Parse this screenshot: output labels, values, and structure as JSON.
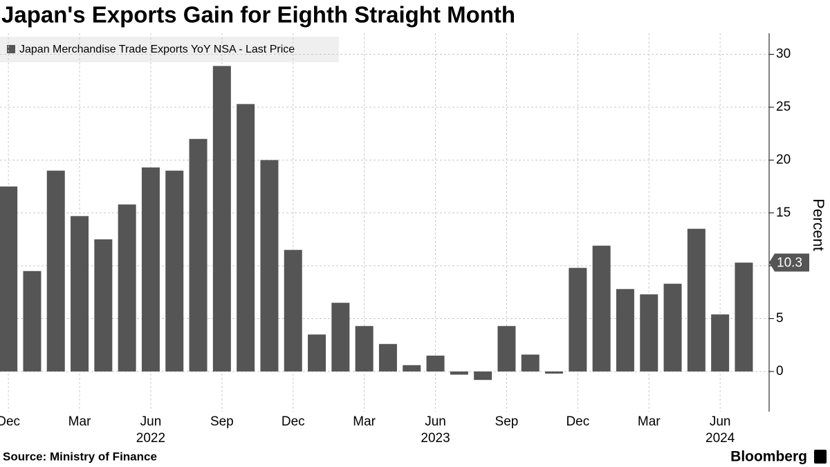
{
  "chart_data": {
    "type": "bar",
    "title": "Japan's Exports Gain for Eighth Straight Month",
    "series": [
      {
        "name": "Japan Merchandise Trade Exports YoY NSA - Last Price",
        "color": "#555555",
        "values": [
          17.5,
          9.5,
          19.0,
          14.7,
          12.5,
          15.8,
          19.3,
          19.0,
          22.0,
          28.9,
          25.3,
          20.0,
          11.5,
          3.5,
          6.5,
          4.3,
          2.6,
          0.6,
          1.5,
          -0.3,
          -0.8,
          4.3,
          1.6,
          -0.2,
          9.8,
          11.9,
          7.8,
          7.3,
          8.3,
          13.5,
          5.4,
          10.3
        ]
      }
    ],
    "categories": [
      "Dec",
      null,
      null,
      "Mar",
      null,
      null,
      "Jun",
      null,
      null,
      "Sep",
      null,
      null,
      "Dec",
      null,
      null,
      "Mar",
      null,
      null,
      "Jun",
      null,
      null,
      "Sep",
      null,
      null,
      "Dec",
      null,
      null,
      "Mar",
      null,
      null,
      "Jun",
      null
    ],
    "years": [
      "2022",
      "2023",
      "2024"
    ],
    "y_label": "Percent",
    "ylim": [
      -3.8,
      32
    ],
    "yticks": [
      0,
      5,
      10,
      15,
      20,
      25,
      30
    ],
    "grid": true,
    "source": "Source: Ministry of Finance",
    "brand": "Bloomberg"
  }
}
